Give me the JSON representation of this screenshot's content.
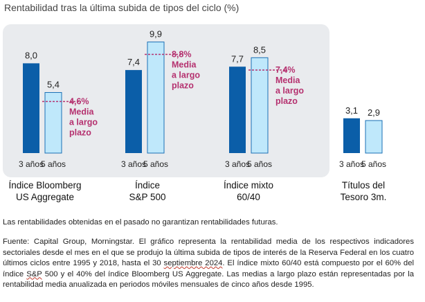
{
  "title": "Rentabilidad tras la última subida de tipos del ciclo (%)",
  "chart_data": {
    "type": "bar",
    "title": "Rentabilidad tras la última subida de tipos del ciclo (%)",
    "series_names": [
      "3 años",
      "5 años"
    ],
    "ylim": [
      0,
      10
    ],
    "groups": [
      {
        "label": "Índice Bloomberg US Aggregate",
        "values": [
          8.0,
          5.4
        ],
        "value_labels": [
          "8,0",
          "5,4"
        ],
        "avg_value": 4.6,
        "avg_label": [
          "4,6%",
          "Media",
          "a largo",
          "plazo"
        ]
      },
      {
        "label": "Índice S&P 500",
        "values": [
          7.4,
          9.9
        ],
        "value_labels": [
          "7,4",
          "9,9"
        ],
        "avg_value": 8.8,
        "avg_label": [
          "8,8%",
          "Media",
          "a largo",
          "plazo"
        ]
      },
      {
        "label": "Índice mixto 60/40",
        "values": [
          7.7,
          8.5
        ],
        "value_labels": [
          "7,7",
          "8,5"
        ],
        "avg_value": 7.4,
        "avg_label": [
          "7,4%",
          "Media",
          "a largo",
          "plazo"
        ]
      },
      {
        "label": "Títulos del Tesoro 3m.",
        "values": [
          3.1,
          2.9
        ],
        "value_labels": [
          "3,1",
          "2,9"
        ],
        "avg_value": null,
        "avg_label": []
      }
    ]
  },
  "group_labels": [
    [
      "Índice Bloomberg",
      "US Aggregate"
    ],
    [
      "Índice",
      "S&P 500"
    ],
    [
      "Índice mixto",
      "60/40"
    ],
    [
      "Títulos del",
      "Tesoro 3m."
    ]
  ],
  "disclaimer": "Las rentabilidades obtenidas en el pasado no garantizan rentabilidades futuras.",
  "source_parts": {
    "a": "Fuente: Capital Group, Morningstar. El gráfico representa la rentabilidad media de los respectivos indicadores sectoriales desde el mes en el que se produjo la última subida de tipos de interés de la Reserva Federal en los cuatro últimos ciclos entre 1995 y 2018, hasta el 30 ",
    "b": "septiembre 2024",
    "c": ". El índice mixto 60/40 está compuesto por el 60% del índice ",
    "d": "S&P",
    "e": " 500 y el 40% del índice Bloomberg US Aggregate. Las medias a largo plazo están representadas por la rentabilidad media anualizada en periodos móviles mensuales de cinco años desde 1995."
  },
  "colors": {
    "bar_3y": "#0b5ea8",
    "bar_3y_stroke": "#0a4f8e",
    "bar_5y": "#bfe8fb",
    "bar_5y_stroke": "#1a6fb5",
    "avg": "#b5316f",
    "panel": "#e9ebee",
    "text": "#222222"
  }
}
